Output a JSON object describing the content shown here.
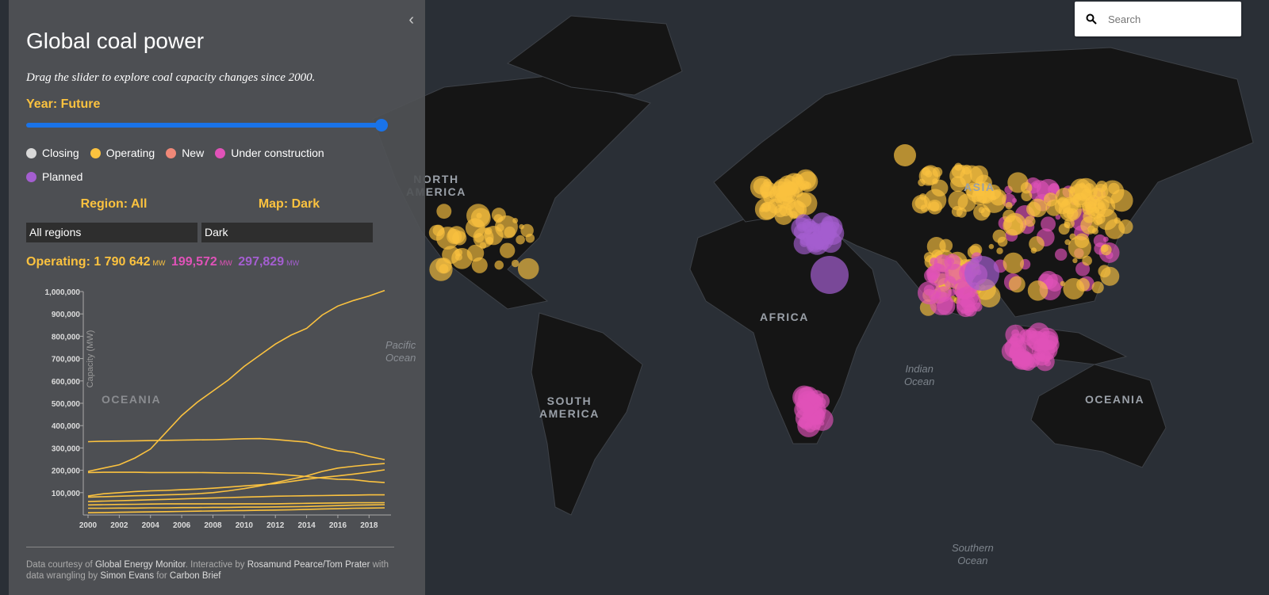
{
  "map": {
    "style": "dark",
    "labels": {
      "north_america": "NORTH\nAMERICA",
      "asia": "ASIA",
      "africa": "AFRICA",
      "south_america": "SOUTH\nAMERICA",
      "oceania": "OCEANIA",
      "oceania_west": "OCEANIA",
      "indian_ocean": "Indian\nOcean",
      "southern_ocean": "Southern\nOcean",
      "pacific_ocean": "Pacific\nOcean"
    }
  },
  "search": {
    "placeholder": "Search",
    "icon": "search-icon"
  },
  "panel": {
    "title": "Global coal power",
    "subtitle": "Drag the slider to explore coal capacity changes since 2000.",
    "year_label": "Year: Future",
    "slider_value": 1.0,
    "legend": [
      {
        "label": "Closing",
        "color": "#d9d9d9"
      },
      {
        "label": "Operating",
        "color": "#fbc23f"
      },
      {
        "label": "New",
        "color": "#f08878"
      },
      {
        "label": "Under construction",
        "color": "#e052b8"
      },
      {
        "label": "Planned",
        "color": "#a45ed0"
      }
    ],
    "region_label": "Region: All",
    "region_value": "All regions",
    "map_label": "Map: Dark",
    "map_value": "Dark",
    "operating_label": "Operating: 1 790 642",
    "unit": "MW",
    "construction_value": "199,572",
    "planned_value": "297,829",
    "footer": {
      "t1": "Data courtesy of ",
      "l1": "Global Energy Monitor",
      "t2": ". Interactive by ",
      "l2": "Rosamund Pearce/Tom Prater",
      "t3": " with data wrangling by ",
      "l3": "Simon Evans",
      "t4": " for ",
      "l4": "Carbon Brief"
    }
  },
  "chart_data": {
    "type": "line",
    "ylabel": "Capacity (MW)",
    "ylim": [
      0,
      1000000
    ],
    "xlim": [
      2000,
      2019
    ],
    "yticks": [
      "100,000",
      "200,000",
      "300,000",
      "400,000",
      "500,000",
      "600,000",
      "700,000",
      "800,000",
      "900,000",
      "1,000,000"
    ],
    "xticks": [
      "2000",
      "2002",
      "2004",
      "2006",
      "2008",
      "2010",
      "2012",
      "2014",
      "2016",
      "2018"
    ],
    "color": "#fbc23f",
    "x": [
      2000,
      2001,
      2002,
      2003,
      2004,
      2005,
      2006,
      2007,
      2008,
      2009,
      2010,
      2011,
      2012,
      2013,
      2014,
      2015,
      2016,
      2017,
      2018,
      2019
    ],
    "series": [
      {
        "values": [
          195000,
          210000,
          225000,
          255000,
          295000,
          370000,
          445000,
          505000,
          555000,
          605000,
          665000,
          715000,
          765000,
          805000,
          835000,
          895000,
          935000,
          960000,
          980000,
          1005000
        ]
      },
      {
        "values": [
          328000,
          330000,
          331000,
          332000,
          333000,
          334000,
          335000,
          336000,
          337000,
          339000,
          341000,
          342000,
          338000,
          332000,
          326000,
          305000,
          288000,
          280000,
          262000,
          248000
        ]
      },
      {
        "values": [
          190000,
          191000,
          191000,
          191000,
          190000,
          190000,
          190000,
          190000,
          189000,
          188000,
          188000,
          187000,
          183000,
          178000,
          172000,
          165000,
          160000,
          158000,
          150000,
          145000
        ]
      },
      {
        "values": [
          80000,
          82000,
          84000,
          86000,
          88000,
          90000,
          92000,
          95000,
          100000,
          108000,
          118000,
          130000,
          145000,
          160000,
          175000,
          195000,
          210000,
          218000,
          225000,
          230000
        ]
      },
      {
        "values": [
          85000,
          95000,
          100000,
          105000,
          108000,
          110000,
          113000,
          116000,
          120000,
          125000,
          130000,
          135000,
          140000,
          150000,
          160000,
          168000,
          175000,
          183000,
          192000,
          202000
        ]
      },
      {
        "values": [
          60000,
          62000,
          64000,
          66000,
          68000,
          70000,
          72000,
          74000,
          76000,
          78000,
          80000,
          82000,
          84000,
          85000,
          86000,
          87000,
          88000,
          89000,
          90000,
          90000
        ]
      },
      {
        "values": [
          45000,
          46000,
          47000,
          48000,
          49000,
          50000,
          50000,
          50000,
          50000,
          50000,
          50000,
          50000,
          50000,
          51000,
          52000,
          53000,
          54000,
          55000,
          55000,
          55000
        ]
      },
      {
        "values": [
          30000,
          30000,
          31000,
          31000,
          32000,
          32000,
          33000,
          33000,
          34000,
          34000,
          35000,
          35000,
          36000,
          37000,
          38000,
          40000,
          42000,
          44000,
          45000,
          46000
        ]
      },
      {
        "values": [
          10000,
          11000,
          12000,
          13000,
          14000,
          15000,
          16000,
          17000,
          18000,
          19000,
          20000,
          21000,
          22000,
          23000,
          25000,
          27000,
          28000,
          30000,
          31000,
          32000
        ]
      }
    ]
  }
}
